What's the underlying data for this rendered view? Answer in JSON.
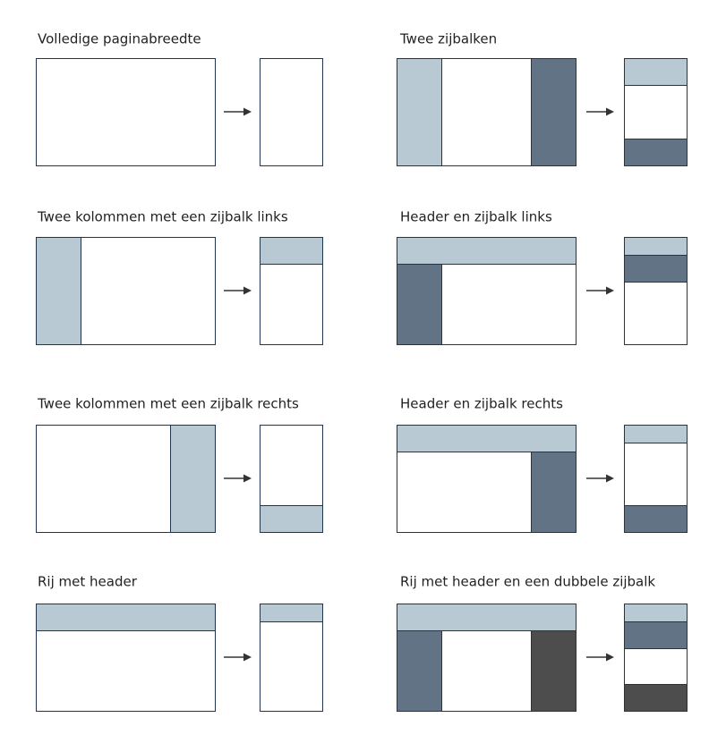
{
  "layouts": [
    {
      "title": "Volledige paginabreedte"
    },
    {
      "title": "Twee zijbalken"
    },
    {
      "title": "Twee kolommen met een zijbalk links"
    },
    {
      "title": "Header en zijbalk links"
    },
    {
      "title": "Twee kolommen met een zijbalk rechts"
    },
    {
      "title": "Header en zijbalk rechts"
    },
    {
      "title": "Rij met header"
    },
    {
      "title": "Rij met header en een dubbele zijbalk"
    }
  ]
}
